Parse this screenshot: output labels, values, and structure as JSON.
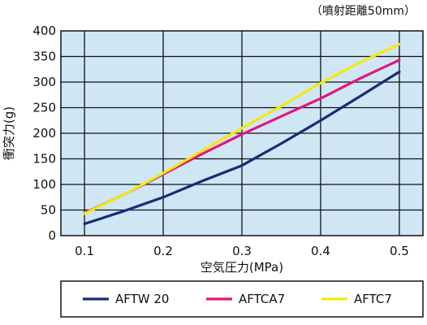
{
  "chart_data": {
    "type": "line",
    "annotation": "（噴射距離50mm）",
    "xlabel": "空気圧力(MPa)",
    "ylabel": "衝突力(g)",
    "xlim": [
      0.07,
      0.53
    ],
    "ylim": [
      0,
      400
    ],
    "x_ticks": [
      0.1,
      0.2,
      0.3,
      0.4,
      0.5
    ],
    "y_ticks": [
      0,
      50,
      100,
      150,
      200,
      250,
      300,
      350,
      400
    ],
    "x_tick_labels": [
      "0.1",
      "0.2",
      "0.3",
      "0.4",
      "0.5"
    ],
    "y_tick_labels": [
      "0",
      "50",
      "100",
      "150",
      "200",
      "250",
      "300",
      "350",
      "400"
    ],
    "grid": true,
    "plot_background": "#cfe7f5",
    "legend_position": "bottom",
    "series": [
      {
        "name": "AFTW 20",
        "color": "#1b2a7a",
        "x": [
          0.1,
          0.15,
          0.2,
          0.25,
          0.3,
          0.35,
          0.4,
          0.45,
          0.5
        ],
        "y": [
          23,
          48,
          75,
          107,
          137,
          180,
          225,
          272,
          320
        ]
      },
      {
        "name": "AFTCA7",
        "color": "#e0187a",
        "x": [
          0.1,
          0.15,
          0.2,
          0.25,
          0.3,
          0.35,
          0.4,
          0.45,
          0.5
        ],
        "y": [
          44,
          80,
          120,
          160,
          198,
          233,
          268,
          307,
          343
        ]
      },
      {
        "name": "AFTC7",
        "color": "#f2ea10",
        "x": [
          0.1,
          0.15,
          0.2,
          0.25,
          0.3,
          0.35,
          0.4,
          0.45,
          0.5
        ],
        "y": [
          43,
          80,
          122,
          166,
          210,
          253,
          298,
          338,
          374
        ]
      }
    ]
  }
}
